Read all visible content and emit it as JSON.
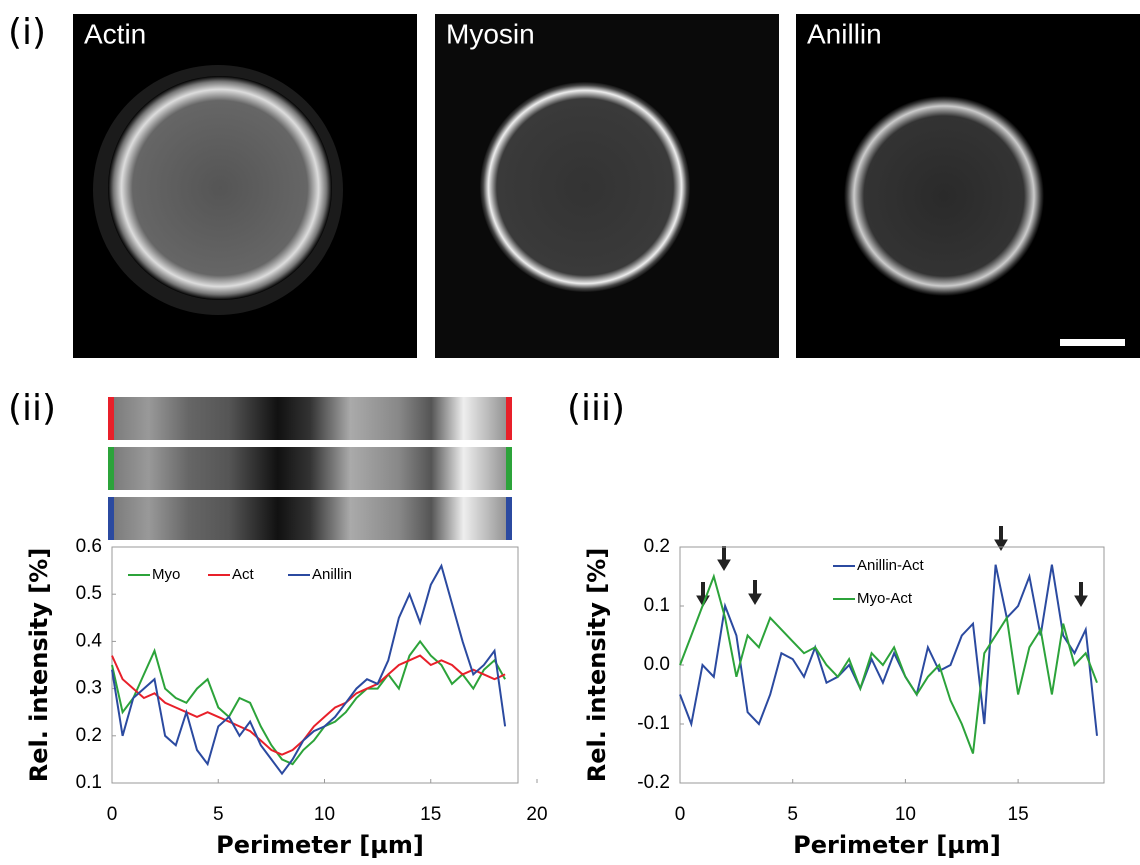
{
  "figure": {
    "panel_labels": [
      "(i)",
      "(ii)",
      "(iii)"
    ],
    "images": [
      "Actin",
      "Myosin",
      "Anillin"
    ]
  },
  "chart_data": [
    {
      "type": "line",
      "ylabel": "Rel. intensity [%]",
      "xlabel": "Perimeter [µm]",
      "x": [
        0,
        0.5,
        1,
        1.5,
        2,
        2.5,
        3,
        3.5,
        4,
        4.5,
        5,
        5.5,
        6,
        6.5,
        7,
        7.5,
        8,
        8.5,
        9,
        9.5,
        10,
        10.5,
        11,
        11.5,
        12,
        12.5,
        13,
        13.5,
        14,
        14.5,
        15,
        15.5,
        16,
        16.5,
        17,
        17.5,
        18,
        18.5
      ],
      "series": [
        {
          "name": "Myo",
          "color": "#2ca33a",
          "values": [
            0.35,
            0.25,
            0.28,
            0.33,
            0.38,
            0.3,
            0.28,
            0.27,
            0.3,
            0.32,
            0.26,
            0.24,
            0.28,
            0.27,
            0.22,
            0.18,
            0.15,
            0.14,
            0.17,
            0.19,
            0.22,
            0.23,
            0.25,
            0.28,
            0.3,
            0.3,
            0.33,
            0.3,
            0.37,
            0.4,
            0.37,
            0.35,
            0.31,
            0.33,
            0.3,
            0.34,
            0.36,
            0.32
          ]
        },
        {
          "name": "Act",
          "color": "#e8202a",
          "values": [
            0.37,
            0.32,
            0.3,
            0.28,
            0.29,
            0.27,
            0.26,
            0.25,
            0.24,
            0.25,
            0.24,
            0.23,
            0.22,
            0.21,
            0.19,
            0.17,
            0.16,
            0.17,
            0.19,
            0.22,
            0.24,
            0.26,
            0.27,
            0.29,
            0.3,
            0.31,
            0.33,
            0.35,
            0.36,
            0.37,
            0.35,
            0.36,
            0.35,
            0.33,
            0.34,
            0.33,
            0.32,
            0.33
          ]
        },
        {
          "name": "Anillin",
          "color": "#2b4aa0",
          "values": [
            0.34,
            0.2,
            0.28,
            0.3,
            0.32,
            0.2,
            0.18,
            0.25,
            0.17,
            0.14,
            0.22,
            0.24,
            0.2,
            0.23,
            0.18,
            0.15,
            0.12,
            0.15,
            0.19,
            0.21,
            0.22,
            0.24,
            0.27,
            0.3,
            0.32,
            0.31,
            0.36,
            0.45,
            0.5,
            0.44,
            0.52,
            0.56,
            0.48,
            0.4,
            0.33,
            0.35,
            0.38,
            0.22
          ]
        }
      ],
      "xlim": [
        0,
        20
      ],
      "xticks": [
        0,
        5,
        10,
        15,
        20
      ],
      "ylim": [
        0.1,
        0.6
      ],
      "yticks": [
        0.1,
        0.2,
        0.3,
        0.4,
        0.5,
        0.6
      ]
    },
    {
      "type": "line",
      "ylabel": "Rel. intensity [%]",
      "xlabel": "Perimeter [µm]",
      "x": [
        0,
        0.5,
        1,
        1.5,
        2,
        2.5,
        3,
        3.5,
        4,
        4.5,
        5,
        5.5,
        6,
        6.5,
        7,
        7.5,
        8,
        8.5,
        9,
        9.5,
        10,
        10.5,
        11,
        11.5,
        12,
        12.5,
        13,
        13.5,
        14,
        14.5,
        15,
        15.5,
        16,
        16.5,
        17,
        17.5,
        18,
        18.5
      ],
      "series": [
        {
          "name": "Anillin-Act",
          "color": "#2b4aa0",
          "values": [
            -0.05,
            -0.1,
            0.0,
            -0.02,
            0.1,
            0.05,
            -0.08,
            -0.1,
            -0.05,
            0.02,
            0.01,
            -0.02,
            0.03,
            -0.03,
            -0.02,
            0.0,
            -0.04,
            0.01,
            -0.03,
            0.02,
            -0.02,
            -0.05,
            0.03,
            -0.01,
            0.0,
            0.05,
            0.07,
            -0.1,
            0.17,
            0.08,
            0.1,
            0.15,
            0.05,
            0.17,
            0.05,
            0.02,
            0.06,
            -0.12
          ]
        },
        {
          "name": "Myo-Act",
          "color": "#2ca33a",
          "values": [
            0.0,
            0.05,
            0.1,
            0.15,
            0.08,
            -0.02,
            0.05,
            0.03,
            0.08,
            0.06,
            0.04,
            0.02,
            0.03,
            0.0,
            -0.02,
            0.01,
            -0.04,
            0.02,
            0.0,
            0.03,
            -0.02,
            -0.05,
            -0.02,
            0.0,
            -0.06,
            -0.1,
            -0.15,
            0.02,
            0.05,
            0.08,
            -0.05,
            0.03,
            0.06,
            -0.05,
            0.07,
            0.0,
            0.02,
            -0.03
          ]
        }
      ],
      "xlim": [
        0,
        18.5
      ],
      "xticks": [
        0,
        5,
        10,
        15
      ],
      "ylim": [
        -0.2,
        0.2
      ],
      "yticks": [
        -0.2,
        -0.1,
        {
          "value": 0,
          "label": "0.0"
        },
        0.1,
        0.2
      ]
    }
  ]
}
